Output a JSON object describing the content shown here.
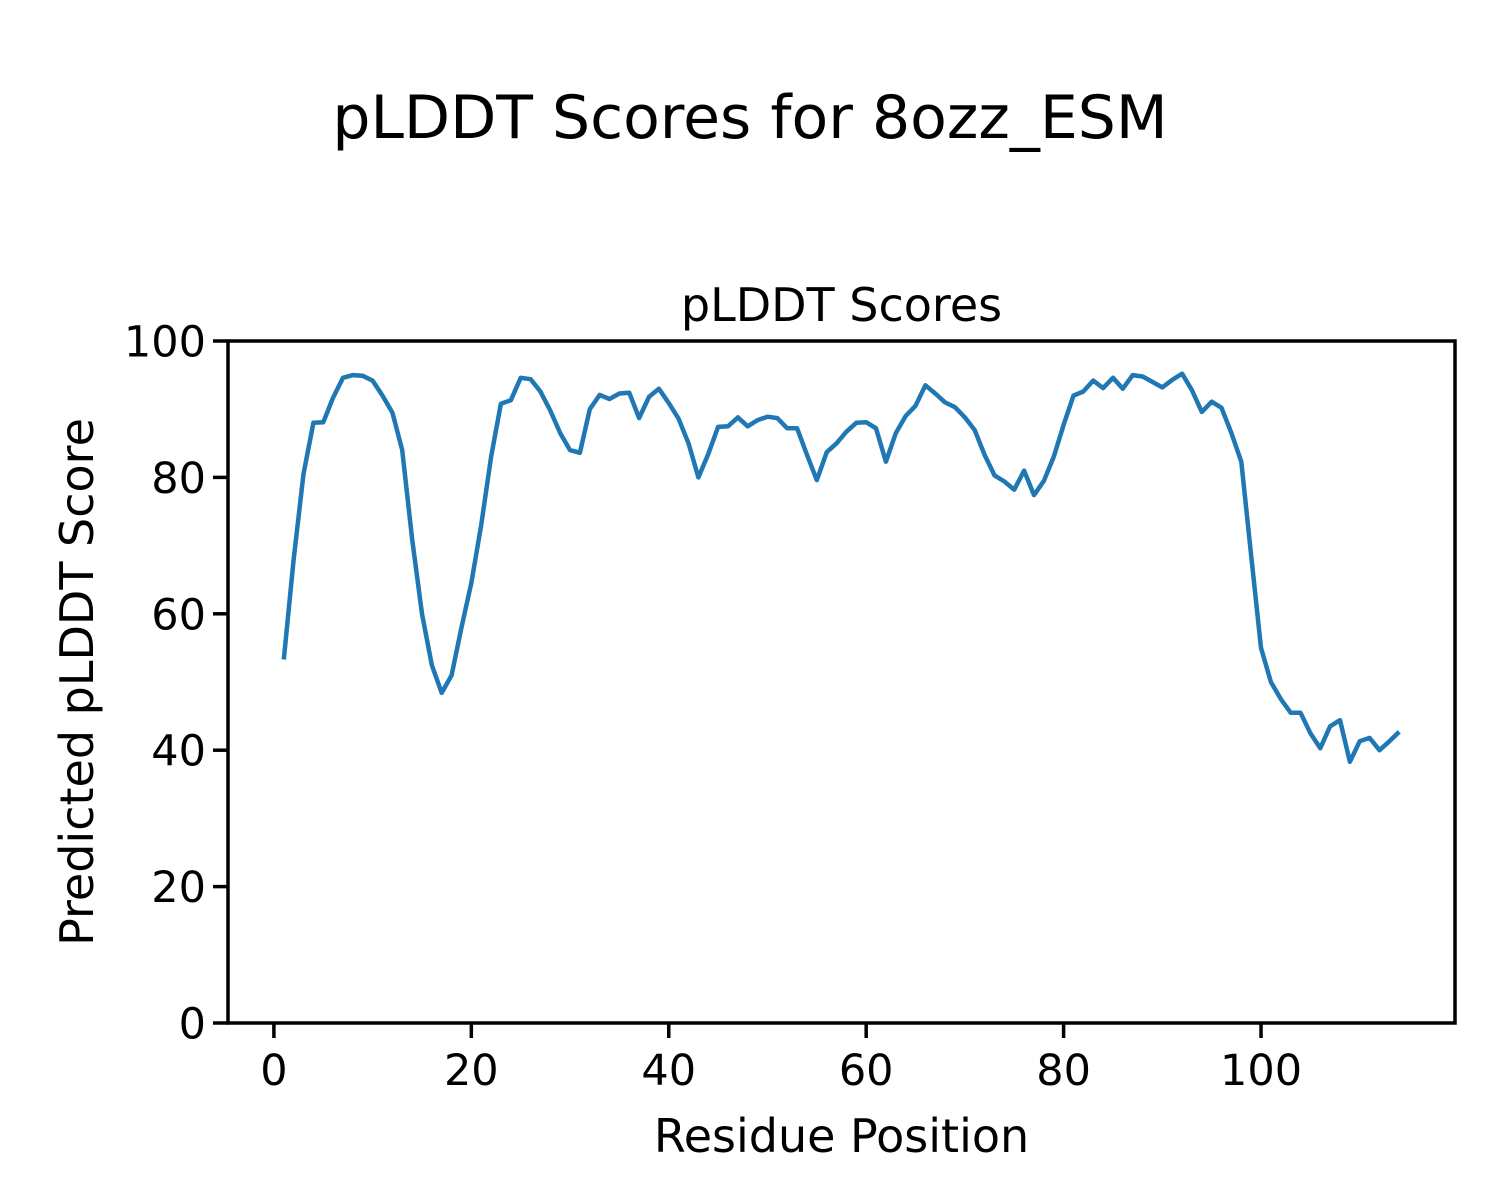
{
  "figure_title": "pLDDT Scores for 8ozz_ESM",
  "chart_data": {
    "type": "line",
    "title": "pLDDT Scores",
    "xlabel": "Residue Position",
    "ylabel": "Predicted pLDDT Score",
    "series_name": "pLDDT",
    "line_color": "#1f77b4",
    "grid": false,
    "legend_visible": false,
    "xlim": [
      -4.65,
      119.65
    ],
    "ylim": [
      0,
      100
    ],
    "x_ticks": [
      0,
      20,
      40,
      60,
      80,
      100
    ],
    "y_ticks": [
      0,
      20,
      40,
      60,
      80,
      100
    ],
    "x_start": 1,
    "values": [
      53.3,
      67.9,
      80.5,
      88.0,
      88.1,
      91.7,
      94.6,
      95.0,
      94.9,
      94.2,
      92.0,
      89.5,
      84.0,
      71.0,
      60.0,
      52.5,
      48.4,
      51.0,
      58.0,
      64.5,
      73.0,
      83.0,
      90.8,
      91.3,
      94.6,
      94.4,
      92.6,
      89.8,
      86.5,
      84.0,
      83.6,
      90.0,
      92.1,
      91.5,
      92.3,
      92.4,
      88.7,
      91.8,
      93.0,
      90.9,
      88.6,
      85.0,
      80.0,
      83.4,
      87.4,
      87.5,
      88.8,
      87.5,
      88.4,
      88.9,
      88.7,
      87.2,
      87.2,
      83.3,
      79.6,
      83.7,
      85.0,
      86.7,
      88.0,
      88.1,
      87.2,
      82.3,
      86.5,
      89.0,
      90.5,
      93.5,
      92.3,
      91.0,
      90.3,
      88.8,
      86.9,
      83.3,
      80.3,
      79.4,
      78.2,
      81.0,
      77.4,
      79.5,
      83.0,
      87.7,
      92.0,
      92.6,
      94.2,
      93.1,
      94.6,
      93.0,
      95.0,
      94.8,
      94.0,
      93.2,
      94.3,
      95.2,
      92.8,
      89.6,
      91.1,
      90.2,
      86.5,
      82.3,
      68.5,
      55.0,
      50.0,
      47.5,
      45.5,
      45.5,
      42.5,
      40.3,
      43.5,
      44.4,
      38.3,
      41.3,
      41.8,
      40.0,
      41.3,
      42.7
    ]
  }
}
